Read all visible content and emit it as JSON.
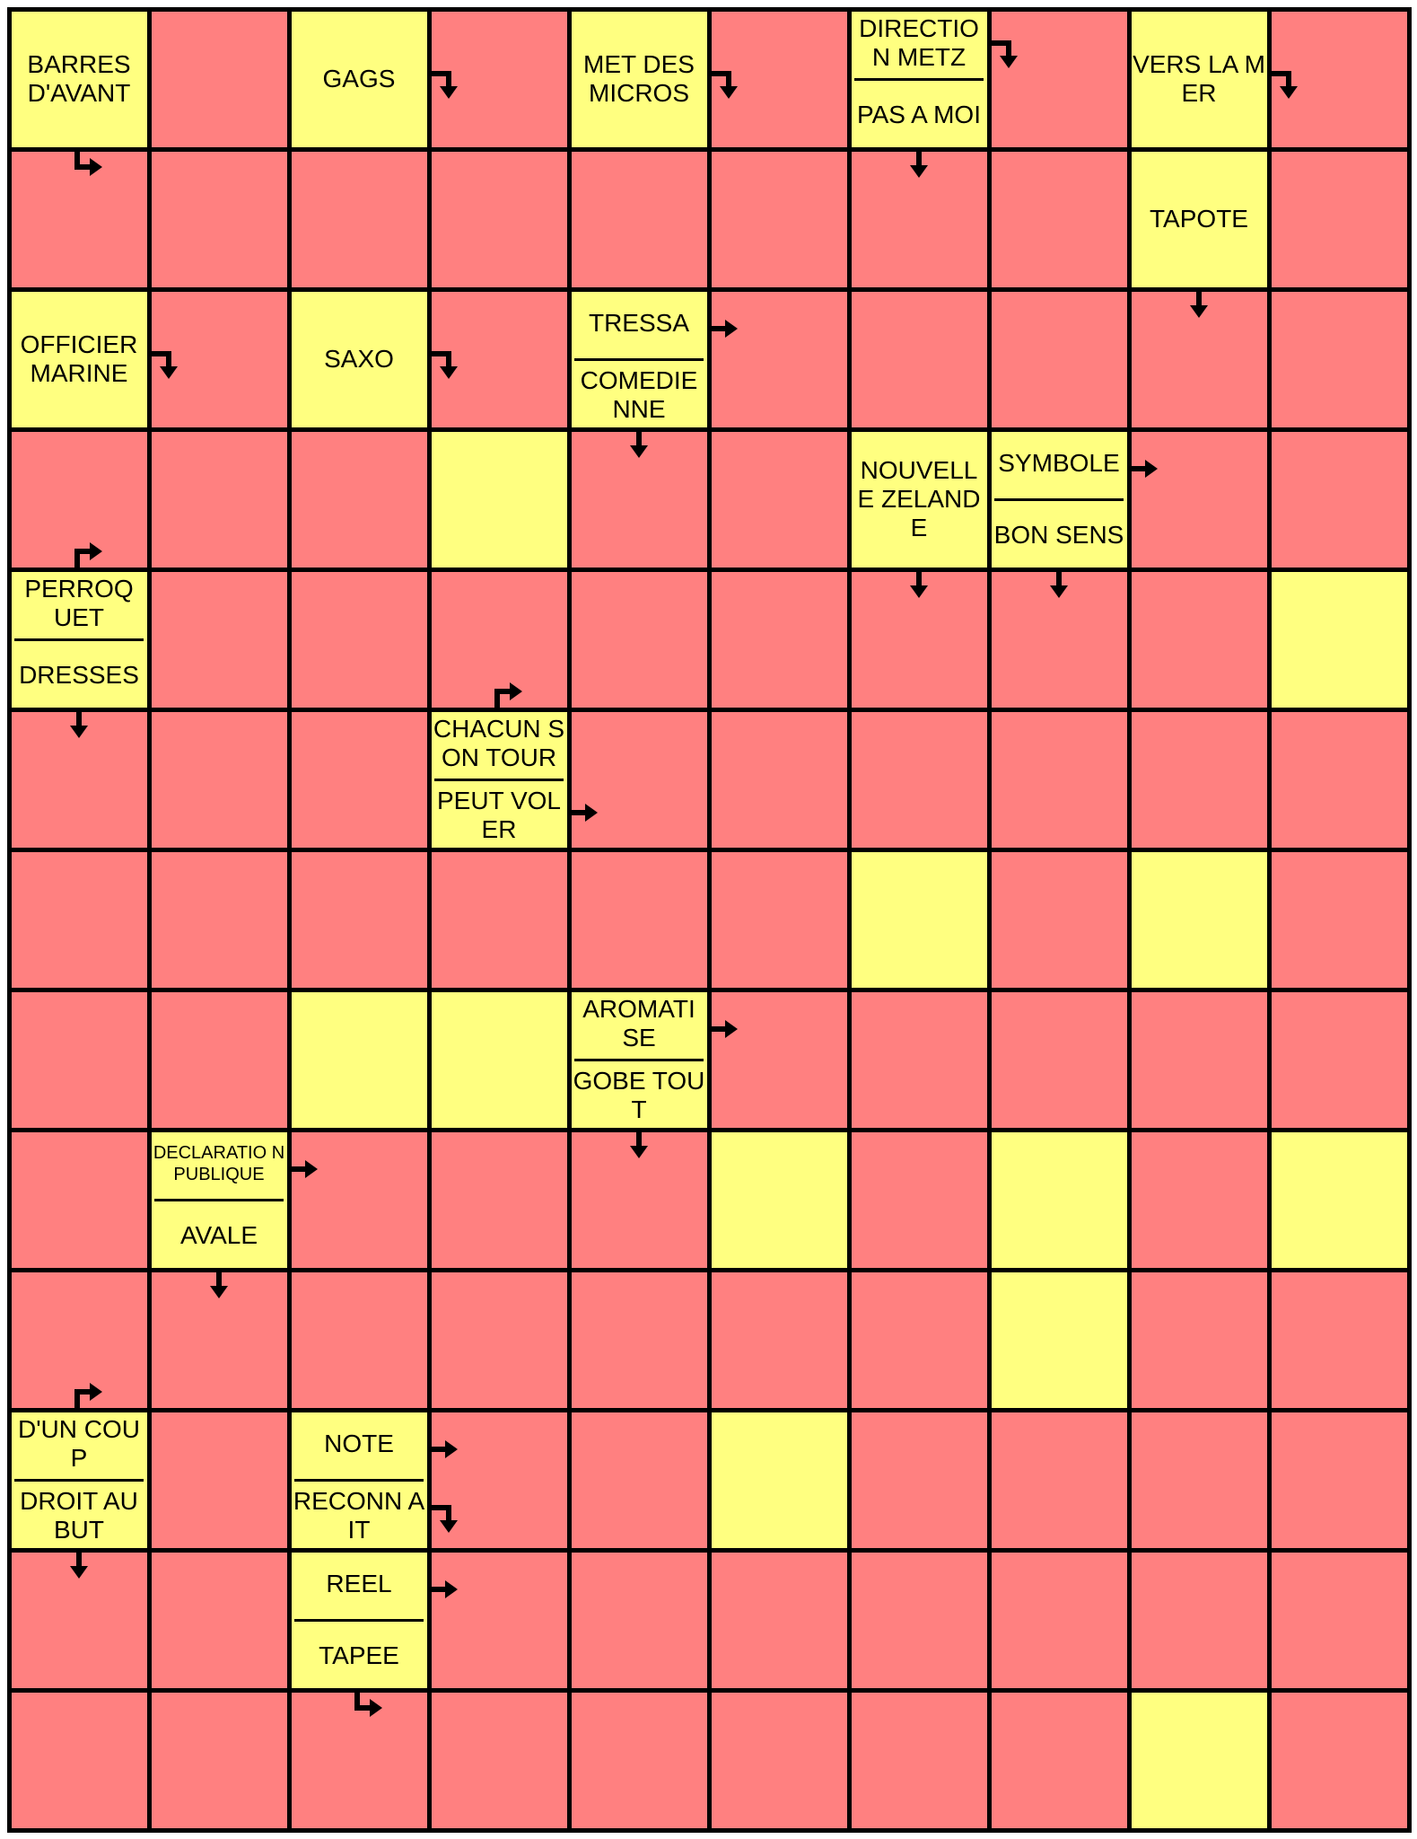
{
  "grid": {
    "cols": 10,
    "rows": 13
  },
  "colors": {
    "empty": "#ff8080",
    "clue": "#ffff80",
    "line": "#000000"
  },
  "clues": [
    {
      "r": 0,
      "c": 0,
      "parts": [
        "BARRES D'AVANT"
      ],
      "arrows": [
        "ne"
      ]
    },
    {
      "r": 0,
      "c": 2,
      "parts": [
        "GAGS"
      ],
      "arrows": [
        "rd"
      ]
    },
    {
      "r": 0,
      "c": 4,
      "parts": [
        "MET DES MICROS"
      ],
      "arrows": [
        "rd"
      ]
    },
    {
      "r": 0,
      "c": 6,
      "parts": [
        "DIRECTIO N METZ",
        "PAS A MOI"
      ],
      "arrows": [
        "rd",
        "d"
      ]
    },
    {
      "r": 0,
      "c": 8,
      "parts": [
        "VERS LA MER"
      ],
      "arrows": [
        "rd"
      ]
    },
    {
      "r": 1,
      "c": 8,
      "parts": [
        "TAPOTE"
      ],
      "arrows": [
        "d"
      ]
    },
    {
      "r": 2,
      "c": 0,
      "parts": [
        "OFFICIER MARINE"
      ],
      "arrows": [
        "rd"
      ]
    },
    {
      "r": 2,
      "c": 2,
      "parts": [
        "SAXO"
      ],
      "arrows": [
        "rd"
      ]
    },
    {
      "r": 2,
      "c": 4,
      "parts": [
        "TRESSA",
        "COMEDIE NNE"
      ],
      "arrows": [
        "r",
        "d"
      ]
    },
    {
      "r": 3,
      "c": 6,
      "parts": [
        "NOUVELL E ZELANDE"
      ],
      "arrows": [
        "d"
      ]
    },
    {
      "r": 3,
      "c": 7,
      "parts": [
        "SYMBOLE",
        "BON SENS"
      ],
      "arrows": [
        "r",
        "d"
      ]
    },
    {
      "r": 4,
      "c": 0,
      "parts": [
        "PERROQ UET",
        "DRESSES"
      ],
      "arrows": [
        "ur",
        "d"
      ]
    },
    {
      "r": 5,
      "c": 3,
      "parts": [
        "CHACUN SON TOUR",
        "PEUT VOLER"
      ],
      "arrows": [
        "ur",
        "r"
      ],
      "small": false
    },
    {
      "r": 7,
      "c": 4,
      "parts": [
        "AROMATI SE",
        "GOBE TOUT"
      ],
      "arrows": [
        "r",
        "d"
      ]
    },
    {
      "r": 8,
      "c": 1,
      "parts": [
        "DECLARATIO N PUBLIQUE",
        "AVALE"
      ],
      "arrows": [
        "r",
        "d"
      ],
      "small": true
    },
    {
      "r": 10,
      "c": 0,
      "parts": [
        "D'UN COUP",
        "DROIT AU BUT"
      ],
      "arrows": [
        "ur",
        "d"
      ]
    },
    {
      "r": 10,
      "c": 2,
      "parts": [
        "NOTE",
        "RECONN AIT"
      ],
      "arrows": [
        "r",
        "rd"
      ]
    },
    {
      "r": 11,
      "c": 2,
      "parts": [
        "REEL",
        "TAPEE"
      ],
      "arrows": [
        "r",
        "ne"
      ]
    }
  ],
  "yellow_cells": [
    {
      "r": 3,
      "c": 3
    },
    {
      "r": 4,
      "c": 9
    },
    {
      "r": 6,
      "c": 6
    },
    {
      "r": 6,
      "c": 8
    },
    {
      "r": 7,
      "c": 2
    },
    {
      "r": 7,
      "c": 3
    },
    {
      "r": 8,
      "c": 5
    },
    {
      "r": 8,
      "c": 7
    },
    {
      "r": 8,
      "c": 9
    },
    {
      "r": 9,
      "c": 7
    },
    {
      "r": 10,
      "c": 5
    },
    {
      "r": 12,
      "c": 8
    }
  ]
}
